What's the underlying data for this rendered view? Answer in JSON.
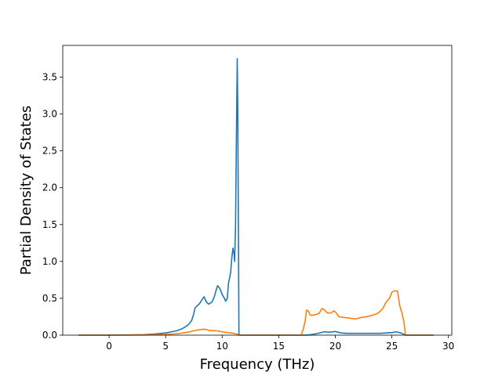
{
  "chart_data": {
    "type": "line",
    "title": "",
    "xlabel": "Frequency (THz)",
    "ylabel": "Partial Density of States",
    "xlim": [
      -4.1,
      30.3
    ],
    "ylim": [
      0,
      3.93
    ],
    "xticks": [
      0,
      5,
      10,
      15,
      20,
      25,
      30
    ],
    "yticks": [
      0.0,
      0.5,
      1.0,
      1.5,
      2.0,
      2.5,
      3.0,
      3.5
    ],
    "xtick_labels": [
      "0",
      "5",
      "10",
      "15",
      "20",
      "25",
      "30"
    ],
    "ytick_labels": [
      "0.0",
      "0.5",
      "1.0",
      "1.5",
      "2.0",
      "2.5",
      "3.0",
      "3.5"
    ],
    "grid": false,
    "legend": "none",
    "series": [
      {
        "color": "#1f77b4",
        "points": [
          [
            -2.7,
            0
          ],
          [
            0,
            0
          ],
          [
            2,
            0.003
          ],
          [
            3,
            0.006
          ],
          [
            4,
            0.015
          ],
          [
            5,
            0.03
          ],
          [
            5.5,
            0.045
          ],
          [
            6,
            0.06
          ],
          [
            6.5,
            0.09
          ],
          [
            7,
            0.14
          ],
          [
            7.3,
            0.2
          ],
          [
            7.5,
            0.3
          ],
          [
            7.6,
            0.37
          ],
          [
            8,
            0.43
          ],
          [
            8.3,
            0.5
          ],
          [
            8.4,
            0.52
          ],
          [
            8.6,
            0.45
          ],
          [
            8.8,
            0.42
          ],
          [
            9.1,
            0.45
          ],
          [
            9.3,
            0.52
          ],
          [
            9.5,
            0.63
          ],
          [
            9.6,
            0.67
          ],
          [
            9.8,
            0.63
          ],
          [
            10.0,
            0.55
          ],
          [
            10.2,
            0.5
          ],
          [
            10.3,
            0.46
          ],
          [
            10.45,
            0.5
          ],
          [
            10.55,
            0.7
          ],
          [
            10.75,
            0.85
          ],
          [
            10.85,
            1.05
          ],
          [
            10.95,
            1.18
          ],
          [
            11.05,
            1.1
          ],
          [
            11.1,
            1.0
          ],
          [
            11.18,
            1.5
          ],
          [
            11.27,
            2.9
          ],
          [
            11.33,
            3.75
          ],
          [
            11.38,
            3.0
          ],
          [
            11.43,
            1.5
          ],
          [
            11.48,
            0
          ],
          [
            17.5,
            0
          ],
          [
            18,
            0.01
          ],
          [
            18.5,
            0.025
          ],
          [
            19,
            0.045
          ],
          [
            19.5,
            0.04
          ],
          [
            20,
            0.05
          ],
          [
            20.5,
            0.03
          ],
          [
            21,
            0.025
          ],
          [
            22,
            0.025
          ],
          [
            23,
            0.025
          ],
          [
            24,
            0.025
          ],
          [
            25,
            0.035
          ],
          [
            25.4,
            0.045
          ],
          [
            25.8,
            0.03
          ],
          [
            26.2,
            0
          ],
          [
            28.7,
            0
          ]
        ]
      },
      {
        "color": "#ff7f0e",
        "points": [
          [
            -2.7,
            0
          ],
          [
            0,
            0
          ],
          [
            3,
            0.002
          ],
          [
            5,
            0.01
          ],
          [
            6,
            0.02
          ],
          [
            7,
            0.04
          ],
          [
            7.5,
            0.06
          ],
          [
            8,
            0.075
          ],
          [
            8.5,
            0.08
          ],
          [
            9,
            0.06
          ],
          [
            9.5,
            0.06
          ],
          [
            10,
            0.045
          ],
          [
            10.5,
            0.035
          ],
          [
            11,
            0.025
          ],
          [
            11.3,
            0.015
          ],
          [
            11.5,
            0
          ],
          [
            17,
            0
          ],
          [
            17.2,
            0.1
          ],
          [
            17.35,
            0.2
          ],
          [
            17.45,
            0.34
          ],
          [
            17.6,
            0.33
          ],
          [
            17.8,
            0.27
          ],
          [
            18,
            0.27
          ],
          [
            18.3,
            0.28
          ],
          [
            18.6,
            0.3
          ],
          [
            18.8,
            0.36
          ],
          [
            19,
            0.35
          ],
          [
            19.3,
            0.3
          ],
          [
            19.6,
            0.3
          ],
          [
            19.9,
            0.33
          ],
          [
            20.1,
            0.3
          ],
          [
            20.3,
            0.25
          ],
          [
            20.8,
            0.24
          ],
          [
            21.3,
            0.23
          ],
          [
            21.8,
            0.22
          ],
          [
            22.3,
            0.24
          ],
          [
            22.8,
            0.25
          ],
          [
            23.3,
            0.27
          ],
          [
            23.8,
            0.3
          ],
          [
            24.2,
            0.36
          ],
          [
            24.5,
            0.45
          ],
          [
            24.8,
            0.5
          ],
          [
            25.0,
            0.58
          ],
          [
            25.2,
            0.6
          ],
          [
            25.5,
            0.6
          ],
          [
            25.7,
            0.4
          ],
          [
            25.9,
            0.3
          ],
          [
            26.1,
            0.15
          ],
          [
            26.2,
            0
          ],
          [
            28.7,
            0
          ]
        ]
      }
    ]
  }
}
